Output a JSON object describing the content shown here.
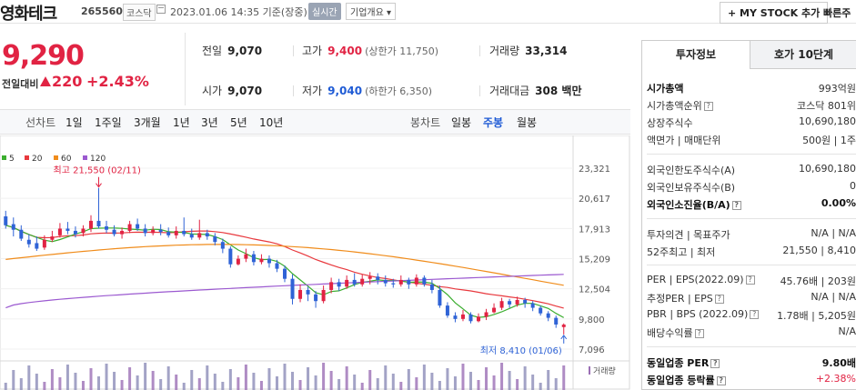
{
  "header": {
    "stock_name": "영화테크",
    "stock_code": "265560",
    "market": "코스닥",
    "time": "2023.01.06 14:35 기준(장중)",
    "realtime_label": "실시간",
    "overview_label": "기업개요 ▾",
    "mystock_label": "MY STOCK 추가",
    "quick_label": "빠른주"
  },
  "price": {
    "current": "9,290",
    "change_label": "전일대비",
    "change": "220",
    "change_pct": "+2.43%"
  },
  "stats": {
    "prev_close_label": "전일",
    "prev_close": "9,070",
    "high_label": "고가",
    "high": "9,400",
    "upper_limit": "(상한가 11,750)",
    "volume_label": "거래량",
    "volume": "33,314",
    "open_label": "시가",
    "open": "9,070",
    "low_label": "저가",
    "low": "9,040",
    "lower_limit": "(하한가 6,350)",
    "amount_label": "거래대금",
    "amount": "308 백만"
  },
  "period_bar": {
    "line_chart_label": "선차트",
    "line_periods": [
      "1일",
      "1주일",
      "3개월",
      "1년",
      "3년",
      "5년",
      "10년"
    ],
    "candle_label": "봉차트",
    "candle_periods": [
      "일봉",
      "주봉",
      "월봉"
    ],
    "active_candle": "주봉"
  },
  "chart_data": {
    "type": "candlestick",
    "legend": [
      {
        "name": "5",
        "color": "#3bae2f"
      },
      {
        "name": "20",
        "color": "#e8383d"
      },
      {
        "name": "60",
        "color": "#f08c1b"
      },
      {
        "name": "120",
        "color": "#9b59d0"
      }
    ],
    "y_ticks": [
      "23,321",
      "20,617",
      "17,913",
      "15,209",
      "12,504",
      "9,800",
      "7,096"
    ],
    "ylim": [
      7096,
      23321
    ],
    "max_annotation": "최고 21,550 (02/11)",
    "min_annotation": "최저 8,410 (01/06)",
    "volume_label": "거래량",
    "candles": [
      [
        19000,
        18200,
        19500,
        17900
      ],
      [
        18300,
        17800,
        18900,
        17200
      ],
      [
        17800,
        17000,
        18200,
        16800
      ],
      [
        16900,
        16500,
        17400,
        16200
      ],
      [
        16600,
        16100,
        17200,
        15900
      ],
      [
        16200,
        16900,
        17300,
        16000
      ],
      [
        16900,
        17200,
        17700,
        16700
      ],
      [
        17300,
        17900,
        18400,
        17100
      ],
      [
        17900,
        17700,
        18500,
        17400
      ],
      [
        17700,
        17400,
        18100,
        17100
      ],
      [
        17500,
        17900,
        18200,
        17200
      ],
      [
        17900,
        18600,
        19100,
        17600
      ],
      [
        18600,
        18100,
        21550,
        17900
      ],
      [
        18100,
        17800,
        18600,
        17500
      ],
      [
        17800,
        17400,
        18200,
        17200
      ],
      [
        17400,
        17700,
        18000,
        17000
      ],
      [
        17700,
        18300,
        18600,
        17500
      ],
      [
        18300,
        17900,
        18800,
        17700
      ],
      [
        17900,
        17500,
        18300,
        17200
      ],
      [
        17500,
        17800,
        18100,
        17300
      ],
      [
        17800,
        17600,
        18300,
        17300
      ],
      [
        17600,
        17300,
        18000,
        17100
      ],
      [
        17300,
        17700,
        18100,
        17000
      ],
      [
        17700,
        17400,
        18900,
        17200
      ],
      [
        17400,
        17100,
        17900,
        16900
      ],
      [
        17100,
        17500,
        18700,
        16900
      ],
      [
        17500,
        17200,
        17800,
        16900
      ],
      [
        17200,
        16700,
        17500,
        16400
      ],
      [
        16700,
        16100,
        17000,
        15700
      ],
      [
        16100,
        14700,
        16300,
        14400
      ],
      [
        14700,
        15200,
        15500,
        14600
      ],
      [
        15200,
        15600,
        16100,
        14900
      ],
      [
        15600,
        14900,
        15900,
        14600
      ],
      [
        14900,
        15200,
        15600,
        14700
      ],
      [
        15200,
        14800,
        15500,
        14400
      ],
      [
        14800,
        14300,
        15100,
        14000
      ],
      [
        14300,
        13400,
        14600,
        13100
      ],
      [
        13400,
        11600,
        13800,
        11100
      ],
      [
        11600,
        12400,
        12900,
        11300
      ],
      [
        12400,
        12000,
        12700,
        11400
      ],
      [
        12000,
        11400,
        12300,
        10800
      ],
      [
        11400,
        12400,
        12800,
        11200
      ],
      [
        12400,
        13100,
        13500,
        12100
      ],
      [
        13100,
        12700,
        13400,
        12300
      ],
      [
        12700,
        13300,
        13700,
        12500
      ],
      [
        13300,
        12900,
        13900,
        12700
      ],
      [
        12900,
        13400,
        13800,
        12700
      ],
      [
        13400,
        13600,
        14000,
        12900
      ],
      [
        13600,
        13300,
        13900,
        12900
      ],
      [
        13300,
        13000,
        13700,
        12700
      ],
      [
        13000,
        12900,
        13400,
        12600
      ],
      [
        12900,
        13300,
        13700,
        12700
      ],
      [
        13300,
        12900,
        13500,
        12500
      ],
      [
        12900,
        13500,
        13800,
        12700
      ],
      [
        13500,
        12900,
        13700,
        12700
      ],
      [
        12900,
        12400,
        13300,
        12100
      ],
      [
        12400,
        11000,
        12800,
        10800
      ],
      [
        11000,
        10100,
        11300,
        9900
      ],
      [
        10100,
        9800,
        10400,
        9500
      ],
      [
        9800,
        10200,
        10600,
        9600
      ],
      [
        10200,
        9600,
        10400,
        9400
      ],
      [
        9600,
        10000,
        10300,
        9500
      ],
      [
        10000,
        10400,
        10700,
        9700
      ],
      [
        10400,
        10800,
        11200,
        10300
      ],
      [
        10800,
        11400,
        11700,
        10600
      ],
      [
        11400,
        11100,
        11600,
        10800
      ],
      [
        11100,
        11500,
        11800,
        10900
      ],
      [
        11500,
        11200,
        11700,
        10800
      ],
      [
        11200,
        10800,
        11400,
        10500
      ],
      [
        10800,
        10300,
        11000,
        10100
      ],
      [
        10300,
        9900,
        10500,
        9600
      ],
      [
        9900,
        9300,
        10100,
        9000
      ],
      [
        9070,
        9290,
        9400,
        8410
      ]
    ]
  },
  "side": {
    "tab_active": "투자정보",
    "tab_other": "호가 10단계",
    "rows": [
      {
        "label": "시가총액",
        "value": "993억원"
      },
      {
        "label": "시가총액순위",
        "value": "코스닥 801위"
      },
      {
        "label": "상장주식수",
        "value": "10,690,180"
      },
      {
        "label": "액면가 | 매매단위",
        "value": "500원 | 1주"
      },
      {
        "label": "외국인한도주식수(A)",
        "value": "10,690,180"
      },
      {
        "label": "외국인보유주식수(B)",
        "value": "0"
      },
      {
        "label": "외국인소진율(B/A)",
        "value": "0.00%"
      },
      {
        "label": "투자의견 | 목표주가",
        "value": "N/A | N/A"
      },
      {
        "label": "52주최고 | 최저",
        "value": "21,550 | 8,410"
      },
      {
        "label": "PER | EPS(2022.09)",
        "value": "45.76배 | 203원"
      },
      {
        "label": "추정PER | EPS",
        "value": "N/A | N/A"
      },
      {
        "label": "PBR | BPS (2022.09)",
        "value": "1.78배 | 5,205원"
      },
      {
        "label": "배당수익률",
        "value": "N/A"
      },
      {
        "label": "동일업종 PER",
        "value": "9.80배"
      },
      {
        "label": "동일업종 등락률",
        "value": "+2.38%"
      }
    ]
  }
}
